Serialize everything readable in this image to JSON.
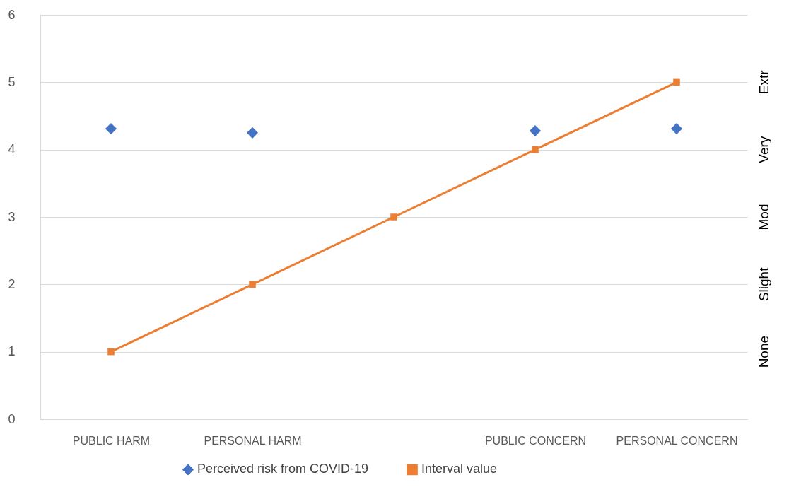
{
  "chart_data": {
    "type": "scatter",
    "categories": [
      "PUBLIC HARM",
      "PERSONAL HARM",
      null,
      "PUBLIC CONCERN",
      "PERSONAL CONCERN"
    ],
    "series": [
      {
        "name": "Perceived risk from COVID-19",
        "color": "#4472c4",
        "marker": "diamond",
        "values": [
          4.31,
          4.25,
          null,
          4.28,
          4.31
        ]
      },
      {
        "name": "Interval value",
        "type": "line",
        "color": "#ed7d31",
        "marker": "square",
        "values": [
          1,
          2,
          3,
          4,
          5
        ]
      }
    ],
    "ylim": [
      0,
      6
    ],
    "yticks": [
      0,
      1,
      2,
      3,
      4,
      5,
      6
    ],
    "annotations": [
      "None",
      "Slight",
      "Mod",
      "Very",
      "Extr"
    ],
    "grid": "y",
    "legend": "bottom"
  }
}
